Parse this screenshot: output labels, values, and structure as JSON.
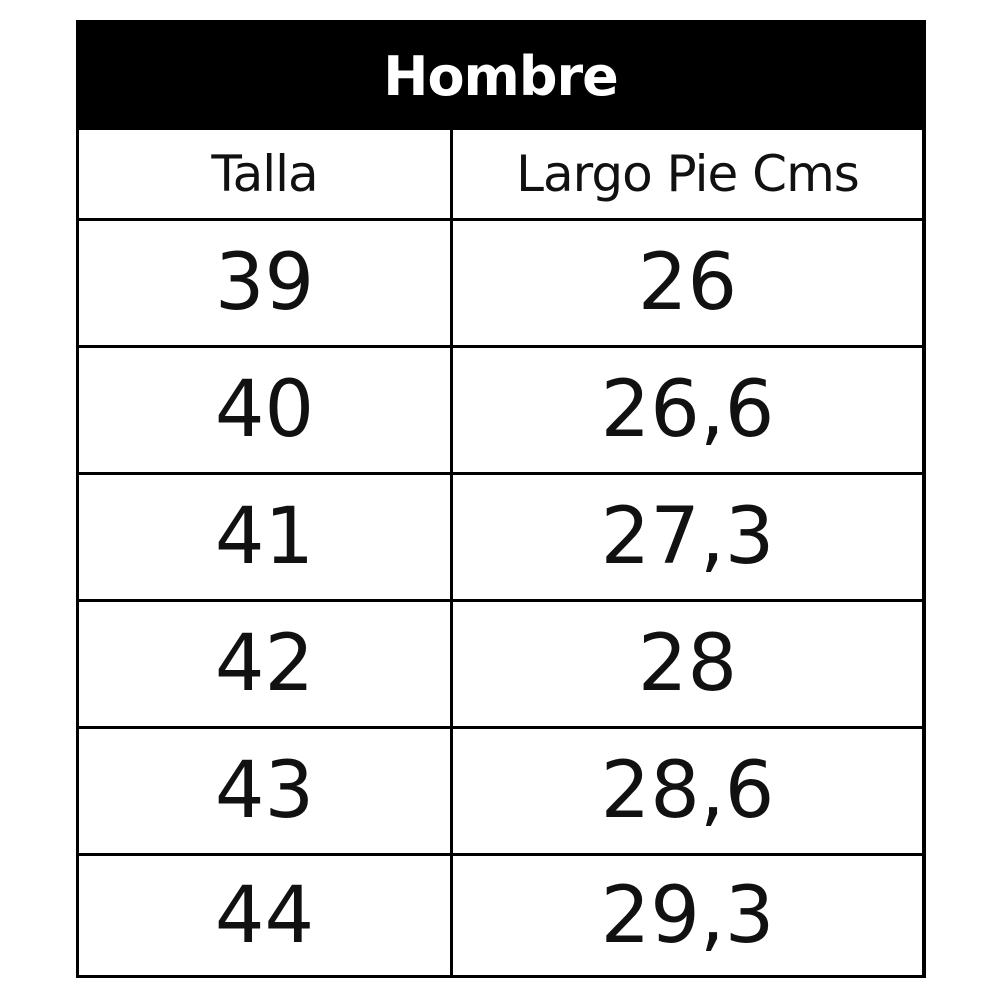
{
  "table": {
    "title": "Hombre",
    "headers": [
      "Talla",
      "Largo Pie Cms"
    ],
    "rows": [
      [
        "39",
        "26"
      ],
      [
        "40",
        "26,6"
      ],
      [
        "41",
        "27,3"
      ],
      [
        "42",
        "28"
      ],
      [
        "43",
        "28,6"
      ],
      [
        "44",
        "29,3"
      ]
    ]
  }
}
